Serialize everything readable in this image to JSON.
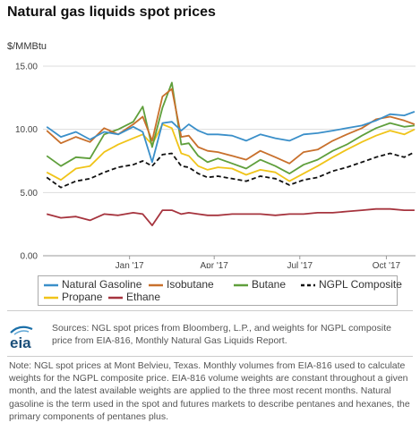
{
  "title": "Natural gas liquids spot prices",
  "unit": "$/MMBtu",
  "sources": "Sources: NGL spot prices from Bloomberg, L.P., and weights for NGPL composite price from EIA-816, Monthly Natural Gas Liquids Report.",
  "note": "Note: NGL spot prices at Mont Belvieu, Texas. Monthly volumes from EIA-816 used to calculate weights for the NGPL composite price. EIA-816 volume weights are constant throughout a given month, and the latest available weights are applied to the three most recent months. Natural gasoline is the term used in the spot and futures markets to describe pentanes and hexanes, the primary components of pentanes plus.",
  "logo_text": "eia",
  "colors": {
    "natural_gasoline": "#3a8fc9",
    "isobutane": "#c8702c",
    "butane": "#5f9f3c",
    "ngpl_composite": "#111111",
    "propane": "#f0c419",
    "ethane": "#a6343e",
    "gridline": "#dddddd",
    "axis": "#999999"
  },
  "chart_data": {
    "type": "line",
    "title": "Natural gas liquids spot prices",
    "ylabel": "$/MMBtu",
    "xlabel": "",
    "ylim": [
      0,
      15
    ],
    "yticks": [
      "0.00",
      "5.00",
      "10.00",
      "15.00"
    ],
    "xlim": [
      "2016-10-01",
      "2017-11-01"
    ],
    "xticks": [
      {
        "date": "2017-01-01",
        "label": "Jan '17"
      },
      {
        "date": "2017-04-01",
        "label": "Apr '17"
      },
      {
        "date": "2017-07-01",
        "label": "Jul '17"
      },
      {
        "date": "2017-10-01",
        "label": "Oct '17"
      }
    ],
    "grid": true,
    "legend": "bottom",
    "x": [
      "2016-10-05",
      "2016-10-20",
      "2016-11-05",
      "2016-11-20",
      "2016-12-05",
      "2016-12-20",
      "2017-01-05",
      "2017-01-15",
      "2017-01-25",
      "2017-02-05",
      "2017-02-15",
      "2017-02-25",
      "2017-03-05",
      "2017-03-15",
      "2017-03-25",
      "2017-04-05",
      "2017-04-20",
      "2017-05-05",
      "2017-05-20",
      "2017-06-05",
      "2017-06-20",
      "2017-07-05",
      "2017-07-20",
      "2017-08-05",
      "2017-08-20",
      "2017-09-05",
      "2017-09-20",
      "2017-10-05",
      "2017-10-20",
      "2017-10-31"
    ],
    "series": [
      {
        "name": "Natural Gasoline",
        "values": [
          10.2,
          9.4,
          9.8,
          9.2,
          9.8,
          9.6,
          10.2,
          9.8,
          7.4,
          10.5,
          10.6,
          9.9,
          10.4,
          9.9,
          9.6,
          9.6,
          9.5,
          9.1,
          9.6,
          9.3,
          9.1,
          9.6,
          9.7,
          9.9,
          10.1,
          10.3,
          10.7,
          11.2,
          11.1,
          11.4
        ]
      },
      {
        "name": "Isobutane",
        "values": [
          9.9,
          8.9,
          9.4,
          9.0,
          10.1,
          9.6,
          10.4,
          11.0,
          9.1,
          12.6,
          13.2,
          9.4,
          9.5,
          8.6,
          8.3,
          8.2,
          7.9,
          7.6,
          8.3,
          7.8,
          7.3,
          8.2,
          8.4,
          9.1,
          9.6,
          10.1,
          10.8,
          11.0,
          10.7,
          10.4
        ]
      },
      {
        "name": "Butane",
        "values": [
          7.9,
          7.1,
          7.8,
          7.7,
          9.6,
          10.0,
          10.6,
          11.8,
          8.6,
          11.7,
          13.7,
          8.8,
          8.9,
          7.9,
          7.4,
          7.7,
          7.3,
          6.9,
          7.6,
          7.1,
          6.5,
          7.2,
          7.6,
          8.3,
          8.8,
          9.5,
          10.1,
          10.5,
          10.2,
          10.3
        ]
      },
      {
        "name": "NGPL Composite",
        "values": [
          6.2,
          5.4,
          5.9,
          6.1,
          6.6,
          7.0,
          7.2,
          7.5,
          7.1,
          8.0,
          8.1,
          7.1,
          7.0,
          6.5,
          6.2,
          6.3,
          6.1,
          5.9,
          6.3,
          6.1,
          5.6,
          6.0,
          6.2,
          6.7,
          7.0,
          7.4,
          7.8,
          8.1,
          7.8,
          8.2
        ]
      },
      {
        "name": "Propane",
        "values": [
          6.6,
          6.0,
          6.9,
          7.1,
          8.2,
          8.8,
          9.3,
          9.6,
          8.8,
          10.4,
          10.1,
          8.1,
          7.9,
          7.1,
          6.8,
          7.0,
          6.9,
          6.4,
          6.8,
          6.6,
          5.9,
          6.5,
          7.1,
          7.8,
          8.4,
          9.0,
          9.5,
          9.9,
          9.6,
          10.0
        ]
      },
      {
        "name": "Ethane",
        "values": [
          3.3,
          3.0,
          3.1,
          2.8,
          3.3,
          3.2,
          3.4,
          3.3,
          2.4,
          3.6,
          3.6,
          3.3,
          3.4,
          3.3,
          3.2,
          3.2,
          3.3,
          3.3,
          3.3,
          3.2,
          3.3,
          3.3,
          3.4,
          3.4,
          3.5,
          3.6,
          3.7,
          3.7,
          3.6,
          3.6
        ]
      }
    ]
  }
}
